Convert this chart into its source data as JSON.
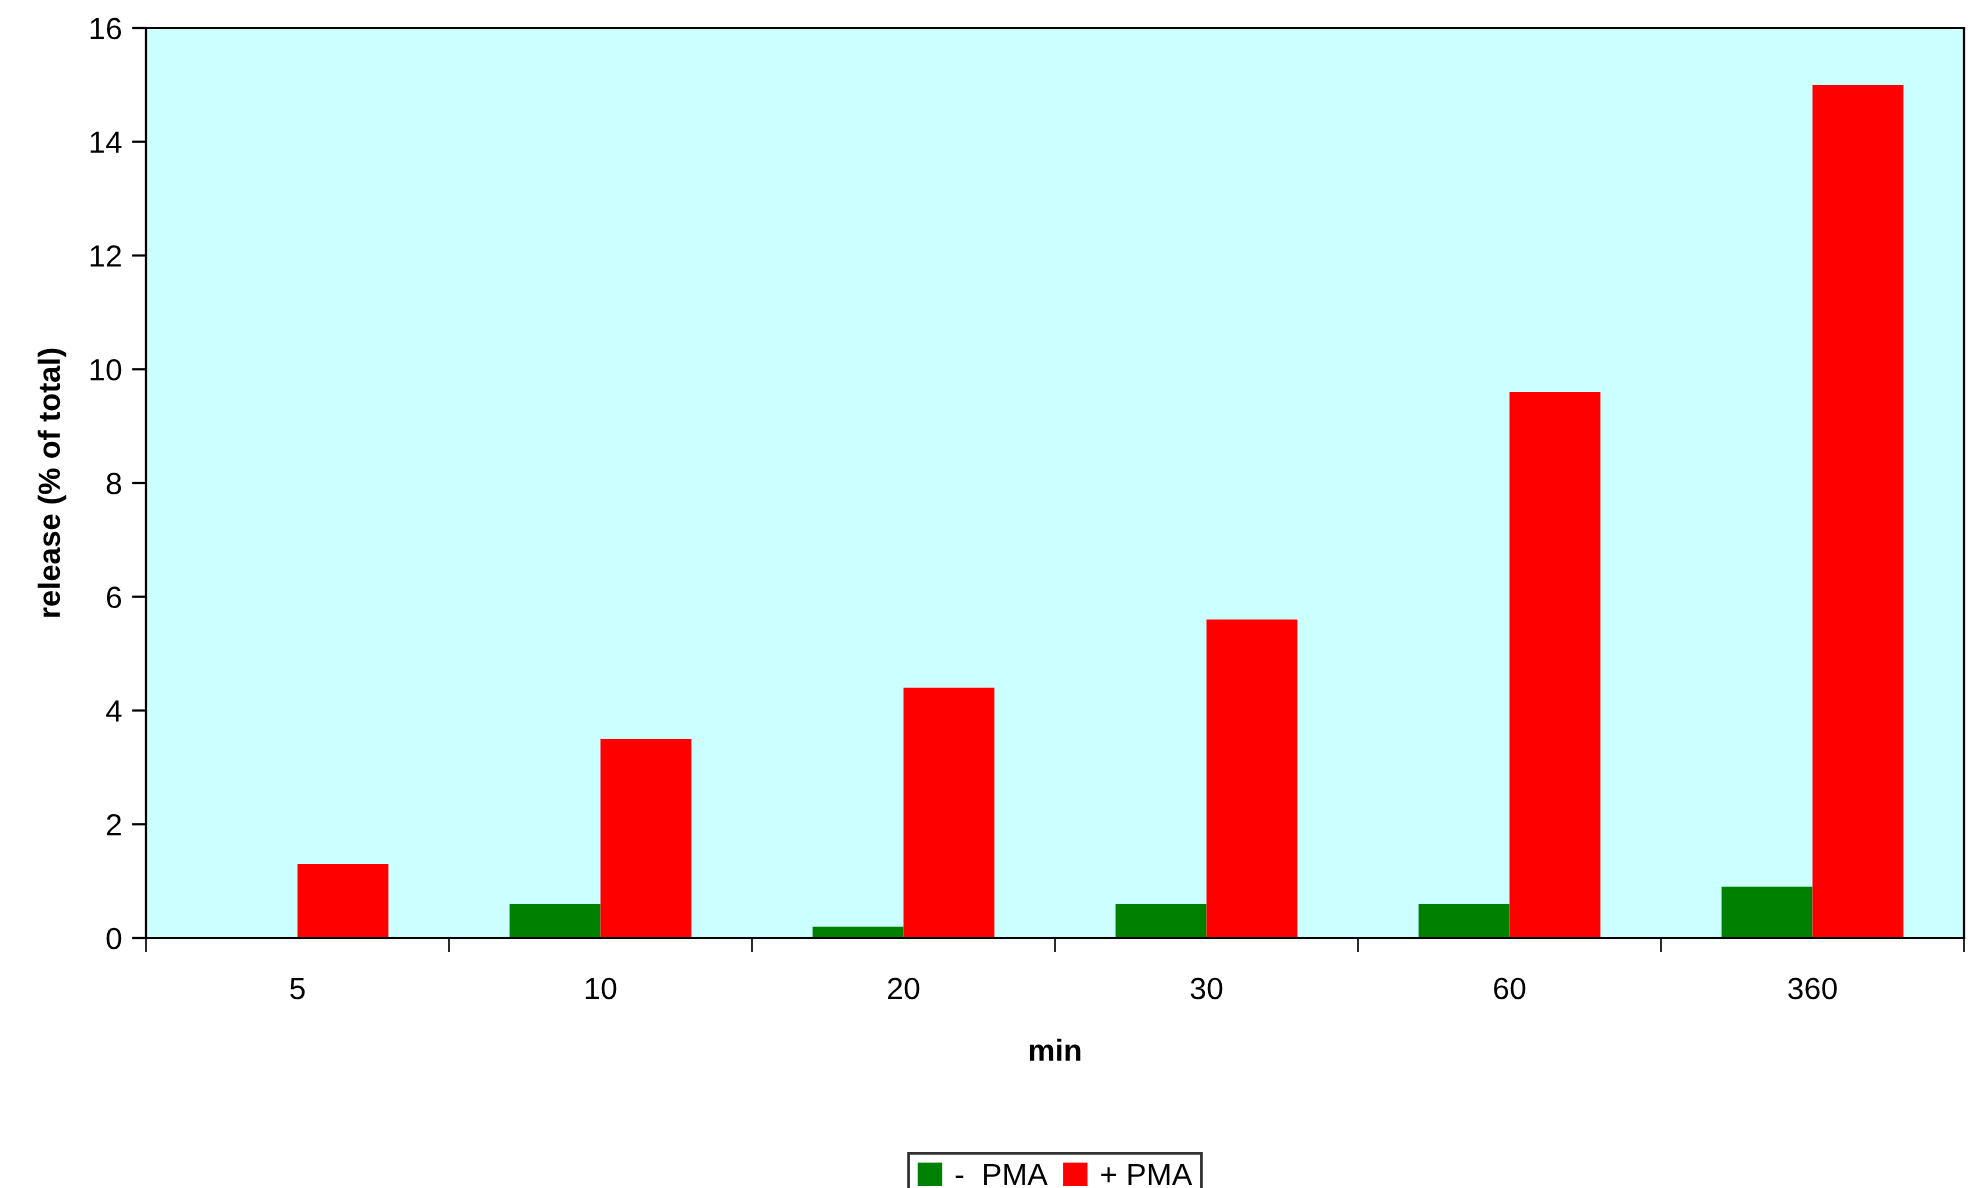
{
  "chart_data": {
    "type": "bar",
    "xlabel": "min",
    "ylabel": "release (% of total)",
    "categories": [
      "5",
      "10",
      "20",
      "30",
      "60",
      "360"
    ],
    "series": [
      {
        "name": "-  PMA",
        "color": "#008000",
        "values": [
          0,
          0.6,
          0.2,
          0.6,
          0.6,
          0.9
        ]
      },
      {
        "name": "+ PMA",
        "color": "#ff0000",
        "values": [
          1.3,
          3.5,
          4.4,
          5.6,
          9.6,
          15
        ]
      }
    ],
    "ylim": [
      0,
      16
    ],
    "yticks": [
      0,
      2,
      4,
      6,
      8,
      10,
      12,
      14,
      16
    ],
    "grid": false,
    "legend": "bottom"
  }
}
